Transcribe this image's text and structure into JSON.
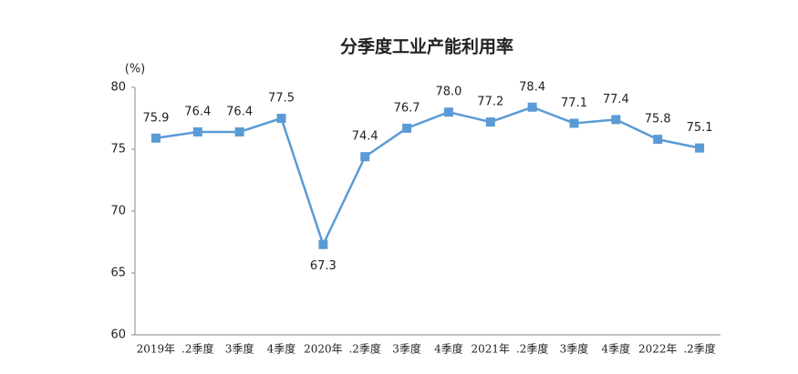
{
  "chart_data": {
    "type": "line",
    "title": "分季度工业产能利用率",
    "y_label": "(%)",
    "categories": [
      "2019年",
      ".2季度",
      "3季度",
      "4季度",
      "2020年",
      ".2季度",
      "3季度",
      "4季度",
      "2021年",
      ".2季度",
      "3季度",
      "4季度",
      "2022年",
      ".2季度"
    ],
    "series": [
      {
        "name": "产能利用率",
        "color": "#5b9bd5",
        "values": [
          75.9,
          76.4,
          76.4,
          77.5,
          67.3,
          74.4,
          76.7,
          78.0,
          77.2,
          78.4,
          77.1,
          77.4,
          75.8,
          75.1
        ],
        "value_labels": [
          "75.9",
          "76.4",
          "76.4",
          "77.5",
          "67.3",
          "74.4",
          "76.7",
          "78.0",
          "77.2",
          "78.4",
          "77.1",
          "77.4",
          "75.8",
          "75.1"
        ]
      }
    ],
    "ylim": [
      60,
      80
    ],
    "yticks": [
      60,
      65,
      70,
      75,
      80
    ],
    "grid": false
  }
}
